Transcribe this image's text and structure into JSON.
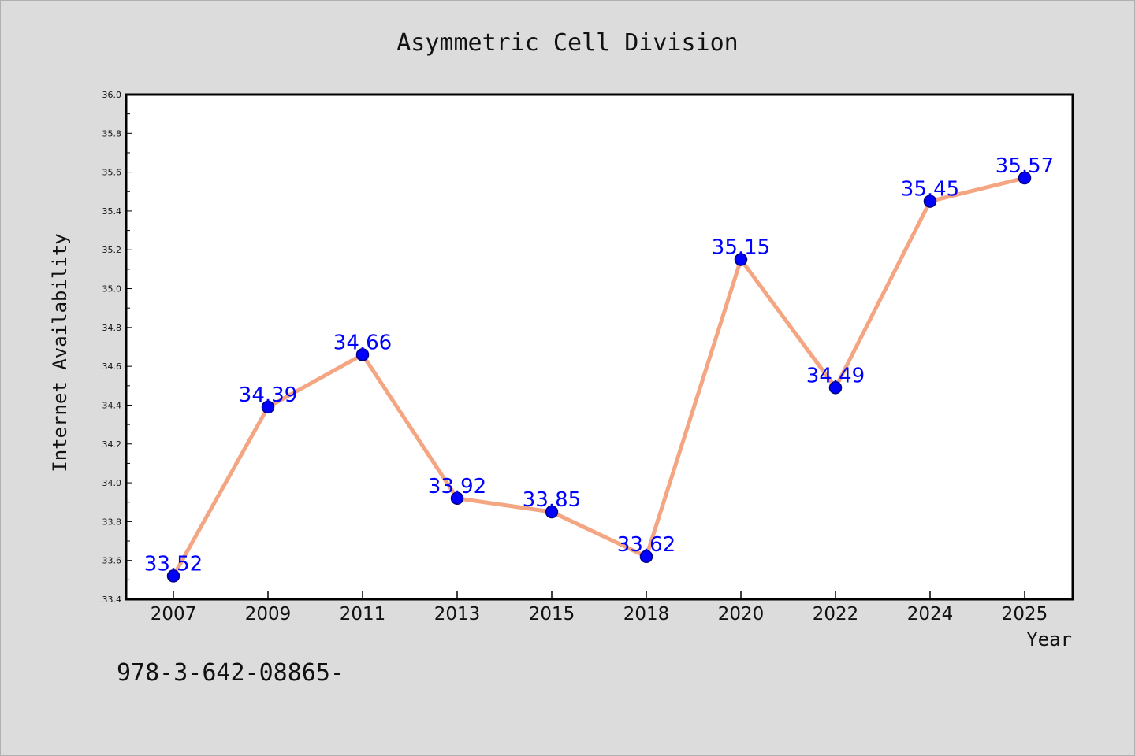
{
  "colors": {
    "background": "#dcdcdc",
    "plot_background": "#ffffff",
    "line": "#f4a582",
    "marker": "#0000ff",
    "marker_edge": "#000080",
    "data_label": "#0000ff"
  },
  "footer_note": "978-3-642-08865-",
  "chart_data": {
    "type": "line",
    "title": "Asymmetric Cell Division",
    "xlabel": "Year",
    "ylabel": "Internet Availability",
    "categories": [
      "2007",
      "2009",
      "2011",
      "2013",
      "2015",
      "2018",
      "2020",
      "2022",
      "2024",
      "2025"
    ],
    "values": [
      33.52,
      34.39,
      34.66,
      33.92,
      33.85,
      33.62,
      35.15,
      34.49,
      35.45,
      35.57
    ],
    "data_labels": [
      "33.52",
      "34.39",
      "34.66",
      "33.92",
      "33.85",
      "33.62",
      "35.15",
      "34.49",
      "35.45",
      "35.57"
    ],
    "ylim": [
      33.4,
      36.0
    ],
    "yticks": [
      "33.4",
      "33.6",
      "33.8",
      "34.0",
      "34.2",
      "34.4",
      "34.6",
      "34.8",
      "35.0",
      "35.2",
      "35.4",
      "35.6",
      "35.8",
      "36.0"
    ],
    "grid": false,
    "legend": "none",
    "markers": true
  }
}
